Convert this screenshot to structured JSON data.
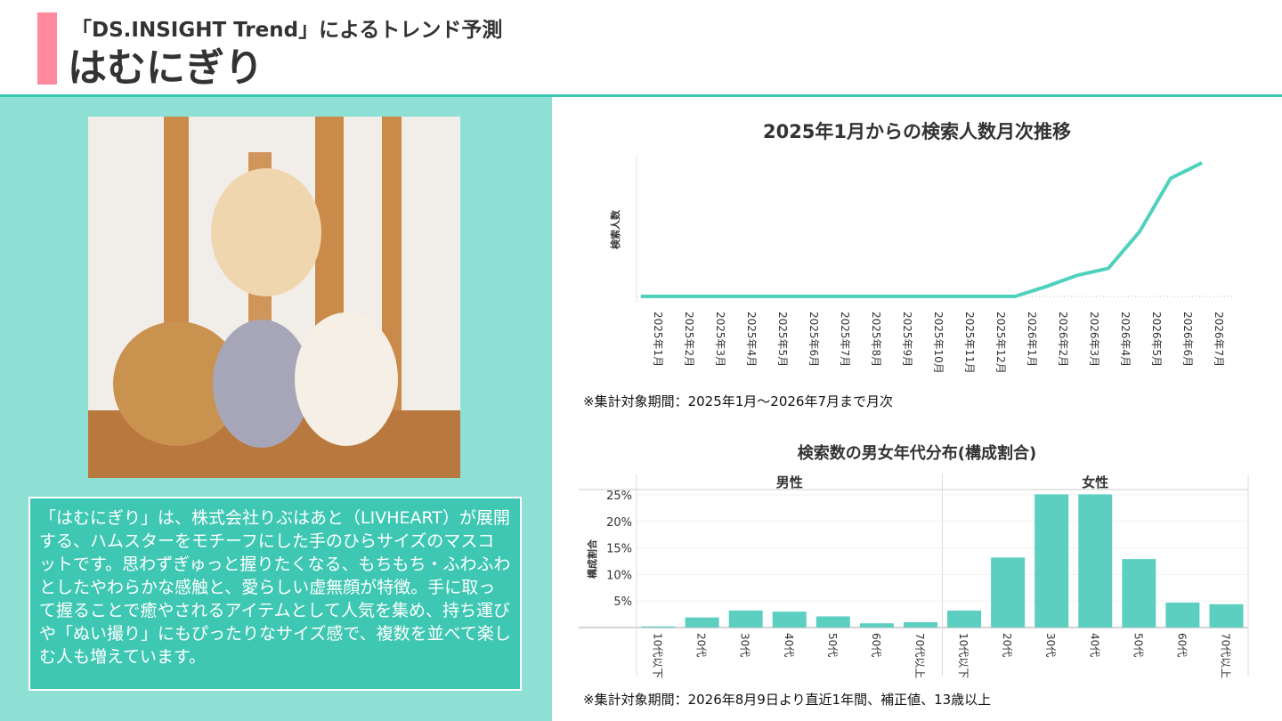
{
  "header": {
    "subtitle": "「DS.INSIGHT Trend」によるトレンド予測",
    "title": "はむにぎり"
  },
  "description": "「はむにぎり」は、株式会社りぶはあと（LIVHEART）が展開する、ハムスターをモチーフにした手のひらサイズのマスコットです。思わずぎゅっと握りたくなる、もちもち・ふわふわとしたやわらかな感触と、愛らしい虚無顔が特徴。手に取って握ることで癒やされるアイテムとして人気を集め、持ち運びや「ぬい撮り」にもぴったりなサイズ感で、複数を並べて楽しむ人も増えています。",
  "chart_data": [
    {
      "type": "line",
      "title": "2025年1月からの検索人数月次推移",
      "ylabel": "検索人数",
      "color": "#4fd1bd",
      "categories": [
        "2025年1月",
        "2025年2月",
        "2025年3月",
        "2025年4月",
        "2025年5月",
        "2025年6月",
        "2025年7月",
        "2025年8月",
        "2025年9月",
        "2025年10月",
        "2025年11月",
        "2025年12月",
        "2026年1月",
        "2026年2月",
        "2026年3月",
        "2026年4月",
        "2026年5月",
        "2026年6月",
        "2026年7月"
      ],
      "values": [
        0,
        0,
        0,
        0,
        0,
        0,
        0,
        0,
        0,
        0,
        0,
        0,
        0,
        7,
        15,
        20,
        46,
        84,
        95
      ],
      "ylim": [
        0,
        100
      ],
      "note": "※集計対象期間：2025年1月〜2026年7月まで月次"
    },
    {
      "type": "bar",
      "title": "検索数の男女年代分布(構成割合)",
      "ylabel": "構成割合",
      "categories": [
        "10代以下",
        "20代",
        "30代",
        "40代",
        "50代",
        "60代",
        "70代以上"
      ],
      "series": [
        {
          "name": "男性",
          "color": "#5ccfc1",
          "values": [
            0.2,
            1.9,
            3.2,
            3.0,
            2.1,
            0.8,
            1.0
          ]
        },
        {
          "name": "女性",
          "color": "#5ccfc1",
          "values": [
            3.2,
            13.2,
            25.1,
            25.1,
            12.9,
            4.7,
            4.4
          ]
        }
      ],
      "ylim": [
        0,
        26
      ],
      "yticks": [
        {
          "value": 5,
          "label": "5%"
        },
        {
          "value": 10,
          "label": "10%"
        },
        {
          "value": 15,
          "label": "15%"
        },
        {
          "value": 20,
          "label": "20%"
        },
        {
          "value": 25,
          "label": "25%"
        }
      ],
      "grid": true,
      "note": "※集計対象期間：2026年8月9日より直近1年間、補正値、13歳以上"
    }
  ]
}
